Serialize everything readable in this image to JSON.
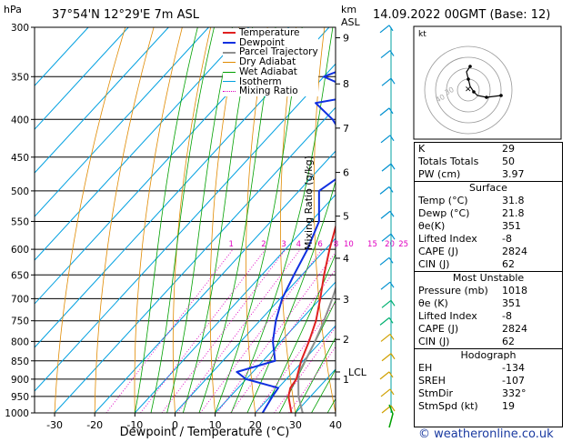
{
  "header": {
    "location": "37°54'N 12°29'E 7m ASL",
    "datetime": "14.09.2022 00GMT (Base: 12)",
    "hpa_label": "hPa",
    "km_label": "km",
    "asl_label": "ASL",
    "copyright": "© weatheronline.co.uk"
  },
  "axes": {
    "xlabel": "Dewpoint / Temperature (°C)",
    "mixing_label": "Mixing Ratio (g/kg)",
    "pressure_ticks": [
      "300",
      "350",
      "400",
      "450",
      "500",
      "550",
      "600",
      "650",
      "700",
      "750",
      "800",
      "850",
      "900",
      "950",
      "1000"
    ],
    "temp_ticks": [
      "-30",
      "-20",
      "-10",
      "0",
      "10",
      "20",
      "30",
      "40"
    ],
    "km_ticks": [
      "9",
      "8",
      "7",
      "6",
      "5",
      "4",
      "3",
      "2",
      "1"
    ],
    "lcl_label": "LCL",
    "mixing_ratio_labels": [
      "1",
      "2",
      "3",
      "4",
      "6",
      "8",
      "10",
      "15",
      "20",
      "25"
    ]
  },
  "legend": [
    "Temperature",
    "Dewpoint",
    "Parcel Trajectory",
    "Dry Adiabat",
    "Wet Adiabat",
    "Isotherm",
    "Mixing Ratio"
  ],
  "colors": {
    "temperature": "#e02020",
    "dewpoint": "#1030e0",
    "parcel": "#909090",
    "dry_adiabat": "#e08a00",
    "wet_adiabat": "#00a000",
    "isotherm": "#00a0e0",
    "mixing_ratio": "#e000c0"
  },
  "chart_data": {
    "type": "line",
    "title": "37°54'N 12°29'E 7m ASL",
    "xlabel": "Dewpoint / Temperature (°C)",
    "ylabel": "hPa",
    "xlim": [
      -35,
      40
    ],
    "ylim": [
      1000,
      300
    ],
    "y_scale": "log",
    "series": [
      {
        "name": "Temperature",
        "pressure": [
          1000,
          950,
          925,
          900,
          850,
          800,
          750,
          700,
          650,
          600,
          550,
          500,
          450,
          400,
          350,
          300
        ],
        "temp": [
          29,
          24.5,
          23,
          22.5,
          19.5,
          17,
          14,
          10,
          5.5,
          1,
          -3.5,
          -8.5,
          -14,
          -20.5,
          -28.5,
          -38
        ]
      },
      {
        "name": "Dewpoint",
        "pressure": [
          1000,
          950,
          925,
          900,
          880,
          850,
          800,
          750,
          700,
          650,
          600,
          550,
          500,
          470,
          450,
          420,
          400,
          380,
          370,
          350,
          330,
          300
        ],
        "temp": [
          21.8,
          20.5,
          20,
          10,
          6,
          13,
          8,
          4,
          0.5,
          -2,
          -4.5,
          -8,
          -15,
          -12.5,
          -17,
          -22,
          -28,
          -36,
          -26,
          -40,
          -32,
          -40
        ]
      },
      {
        "name": "Parcel Trajectory",
        "pressure": [
          1000,
          950,
          900,
          880,
          850,
          800,
          750,
          700,
          650,
          600,
          550,
          500,
          450,
          400,
          350,
          300
        ],
        "temp": [
          31.8,
          27,
          23,
          21.5,
          20.5,
          18.5,
          16,
          13,
          9.5,
          6,
          2,
          -2.5,
          -7.5,
          -13.5,
          -20,
          -28
        ]
      }
    ],
    "hodograph": {
      "rings": [
        "40",
        "30"
      ],
      "label": "kt"
    }
  },
  "indices": {
    "rows": [
      {
        "label": "K",
        "value": "29"
      },
      {
        "label": "Totals Totals",
        "value": "50"
      },
      {
        "label": "PW (cm)",
        "value": "3.97"
      }
    ],
    "surface_title": "Surface",
    "surface": [
      {
        "label": "Temp (°C)",
        "value": "31.8"
      },
      {
        "label": "Dewp (°C)",
        "value": "21.8"
      },
      {
        "label": "θe(K)",
        "value": "351"
      },
      {
        "label": "Lifted Index",
        "value": "-8"
      },
      {
        "label": "CAPE (J)",
        "value": "2824"
      },
      {
        "label": "CIN (J)",
        "value": "62"
      }
    ],
    "mu_title": "Most Unstable",
    "mu": [
      {
        "label": "Pressure (mb)",
        "value": "1018"
      },
      {
        "label": "θe (K)",
        "value": "351"
      },
      {
        "label": "Lifted Index",
        "value": "-8"
      },
      {
        "label": "CAPE (J)",
        "value": "2824"
      },
      {
        "label": "CIN (J)",
        "value": "62"
      }
    ],
    "hodo_title": "Hodograph",
    "hodo": [
      {
        "label": "EH",
        "value": "-134"
      },
      {
        "label": "SREH",
        "value": "-107"
      },
      {
        "label": "StmDir",
        "value": "332°"
      },
      {
        "label": "StmSpd (kt)",
        "value": "19"
      }
    ]
  }
}
